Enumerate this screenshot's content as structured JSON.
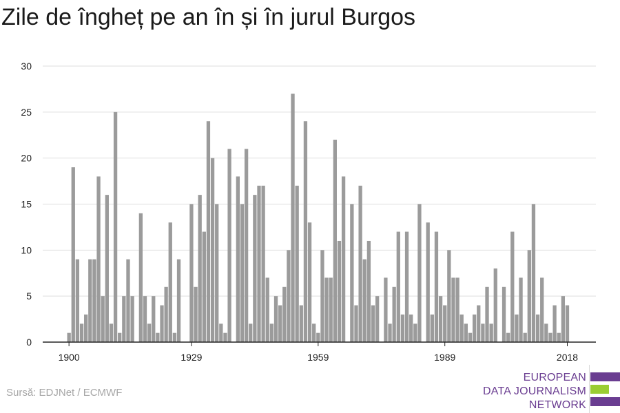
{
  "header": {
    "title": "Zile de îngheț pe an în și în jurul Burgos"
  },
  "footer": {
    "source": "Sursă: EDJNet / ECMWF"
  },
  "logo": {
    "line1": "EUROPEAN",
    "line2": "DATA JOURNALISM",
    "line3": "NETWORK",
    "colors": {
      "text": "#6a3d91",
      "bar_purple": "#6a3d91",
      "bar_green": "#9acd32"
    }
  },
  "colors": {
    "bar": "#9b9b9b",
    "grid": "#dddddd",
    "axis": "#222222"
  },
  "chart_data": {
    "type": "bar",
    "title": "Zile de îngheț pe an în și în jurul Burgos",
    "xlabel": "",
    "ylabel": "",
    "ylim": [
      0,
      30
    ],
    "yticks": [
      0,
      5,
      10,
      15,
      20,
      25,
      30
    ],
    "xticks": [
      1900,
      1929,
      1959,
      1989,
      2018
    ],
    "grid": true,
    "categories": [
      1900,
      1901,
      1902,
      1903,
      1904,
      1905,
      1906,
      1907,
      1908,
      1909,
      1910,
      1911,
      1912,
      1913,
      1914,
      1915,
      1916,
      1917,
      1918,
      1919,
      1920,
      1921,
      1922,
      1923,
      1924,
      1925,
      1926,
      1927,
      1928,
      1929,
      1930,
      1931,
      1932,
      1933,
      1934,
      1935,
      1936,
      1937,
      1938,
      1939,
      1940,
      1941,
      1942,
      1943,
      1944,
      1945,
      1946,
      1947,
      1948,
      1949,
      1950,
      1951,
      1952,
      1953,
      1954,
      1955,
      1956,
      1957,
      1958,
      1959,
      1960,
      1961,
      1962,
      1963,
      1964,
      1965,
      1966,
      1967,
      1968,
      1969,
      1970,
      1971,
      1972,
      1973,
      1974,
      1975,
      1976,
      1977,
      1978,
      1979,
      1980,
      1981,
      1982,
      1983,
      1984,
      1985,
      1986,
      1987,
      1988,
      1989,
      1990,
      1991,
      1992,
      1993,
      1994,
      1995,
      1996,
      1997,
      1998,
      1999,
      2000,
      2001,
      2002,
      2003,
      2004,
      2005,
      2006,
      2007,
      2008,
      2009,
      2010,
      2011,
      2012,
      2013,
      2014,
      2015,
      2016,
      2017,
      2018
    ],
    "values": [
      1,
      19,
      9,
      2,
      3,
      9,
      9,
      18,
      5,
      16,
      2,
      25,
      1,
      5,
      9,
      5,
      0,
      14,
      5,
      2,
      5,
      1,
      4,
      6,
      13,
      1,
      9,
      0,
      0,
      15,
      6,
      16,
      12,
      24,
      20,
      15,
      2,
      1,
      21,
      0,
      18,
      15,
      21,
      2,
      16,
      17,
      17,
      7,
      2,
      5,
      4,
      6,
      10,
      27,
      17,
      4,
      24,
      13,
      2,
      1,
      10,
      7,
      7,
      22,
      11,
      18,
      0,
      15,
      4,
      17,
      9,
      11,
      4,
      5,
      0,
      7,
      2,
      6,
      12,
      3,
      12,
      3,
      2,
      15,
      0,
      13,
      3,
      12,
      5,
      4,
      10,
      7,
      7,
      3,
      2,
      1,
      3,
      4,
      2,
      6,
      2,
      8,
      0,
      6,
      1,
      12,
      3,
      7,
      1,
      10,
      15,
      3,
      7,
      2,
      1,
      4,
      1,
      5,
      4
    ]
  }
}
